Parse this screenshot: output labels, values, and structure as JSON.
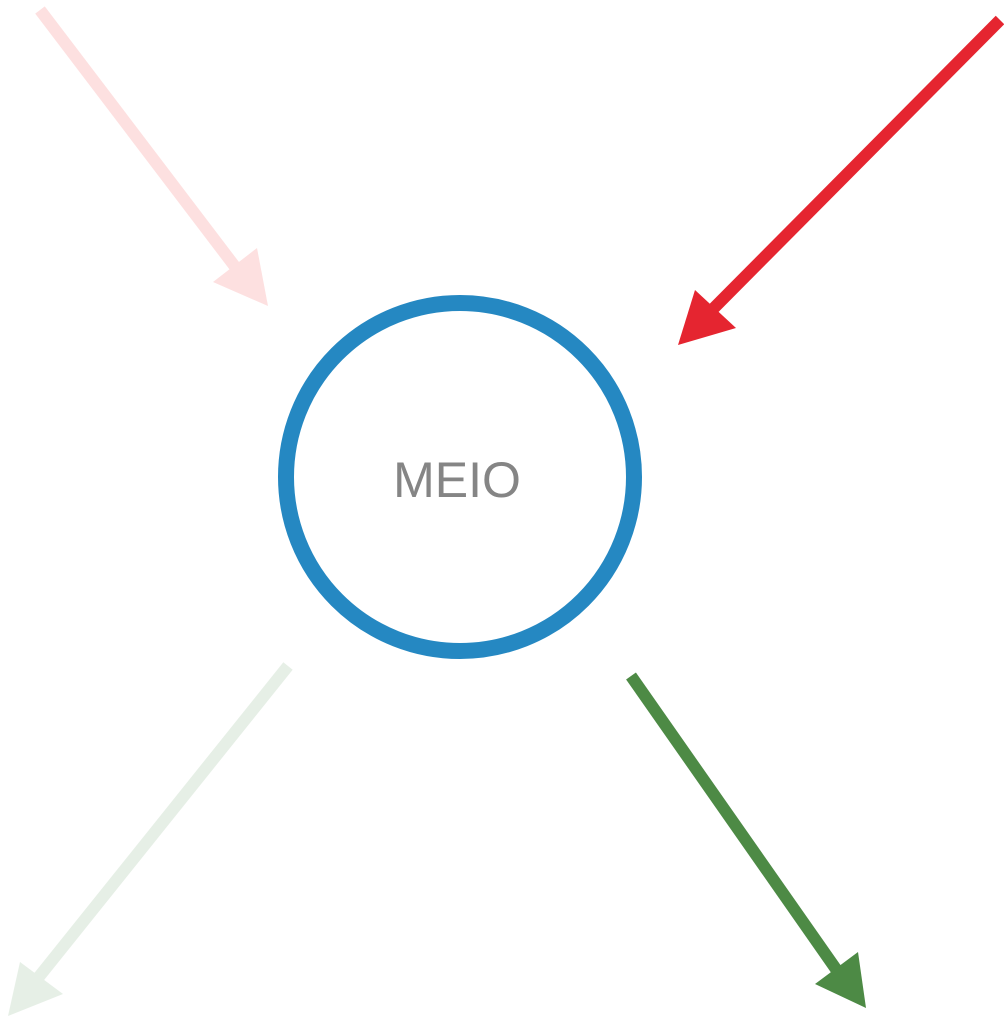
{
  "node": {
    "label": "MEIO"
  }
}
